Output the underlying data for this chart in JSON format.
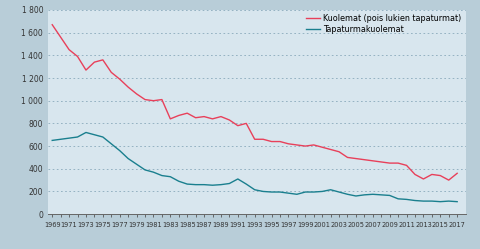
{
  "years": [
    1969,
    1970,
    1971,
    1972,
    1973,
    1974,
    1975,
    1976,
    1977,
    1978,
    1979,
    1980,
    1981,
    1982,
    1983,
    1984,
    1985,
    1986,
    1987,
    1988,
    1989,
    1990,
    1991,
    1992,
    1993,
    1994,
    1995,
    1996,
    1997,
    1998,
    1999,
    2000,
    2001,
    2002,
    2003,
    2004,
    2005,
    2006,
    2007,
    2008,
    2009,
    2010,
    2011,
    2012,
    2013,
    2014,
    2015,
    2016,
    2017
  ],
  "deaths_no_accident": [
    1670,
    1560,
    1450,
    1390,
    1270,
    1340,
    1360,
    1250,
    1190,
    1120,
    1060,
    1010,
    1000,
    1010,
    840,
    870,
    890,
    850,
    860,
    840,
    860,
    830,
    780,
    800,
    660,
    660,
    640,
    640,
    620,
    610,
    600,
    610,
    590,
    570,
    550,
    500,
    490,
    480,
    470,
    460,
    450,
    450,
    430,
    350,
    310,
    350,
    340,
    300,
    360
  ],
  "accident_deaths": [
    650,
    660,
    670,
    680,
    720,
    700,
    680,
    620,
    560,
    490,
    440,
    390,
    370,
    340,
    330,
    290,
    265,
    260,
    260,
    255,
    260,
    270,
    310,
    265,
    215,
    200,
    195,
    195,
    185,
    175,
    195,
    195,
    200,
    215,
    195,
    175,
    160,
    170,
    175,
    170,
    165,
    135,
    130,
    120,
    115,
    115,
    110,
    115,
    110
  ],
  "line1_color": "#e8405a",
  "line2_color": "#1a7f8e",
  "background_color": "#b8cdd8",
  "plot_bg_color": "#d8e6ee",
  "legend1": "Kuolemat (pois lukien tapaturmat)",
  "legend2": "Tapaturmakuolemat",
  "ylim": [
    0,
    1800
  ],
  "yticks": [
    0,
    200,
    400,
    600,
    800,
    1000,
    1200,
    1400,
    1600,
    1800
  ],
  "ytick_labels": [
    "0",
    "200",
    "400",
    "600",
    "800",
    "1 000",
    "1 200",
    "1 400",
    "1 600",
    "1 800"
  ],
  "xtick_years": [
    1969,
    1971,
    1973,
    1975,
    1977,
    1979,
    1981,
    1983,
    1985,
    1987,
    1989,
    1991,
    1993,
    1995,
    1997,
    1999,
    2001,
    2003,
    2005,
    2007,
    2009,
    2011,
    2013,
    2015,
    2017
  ]
}
